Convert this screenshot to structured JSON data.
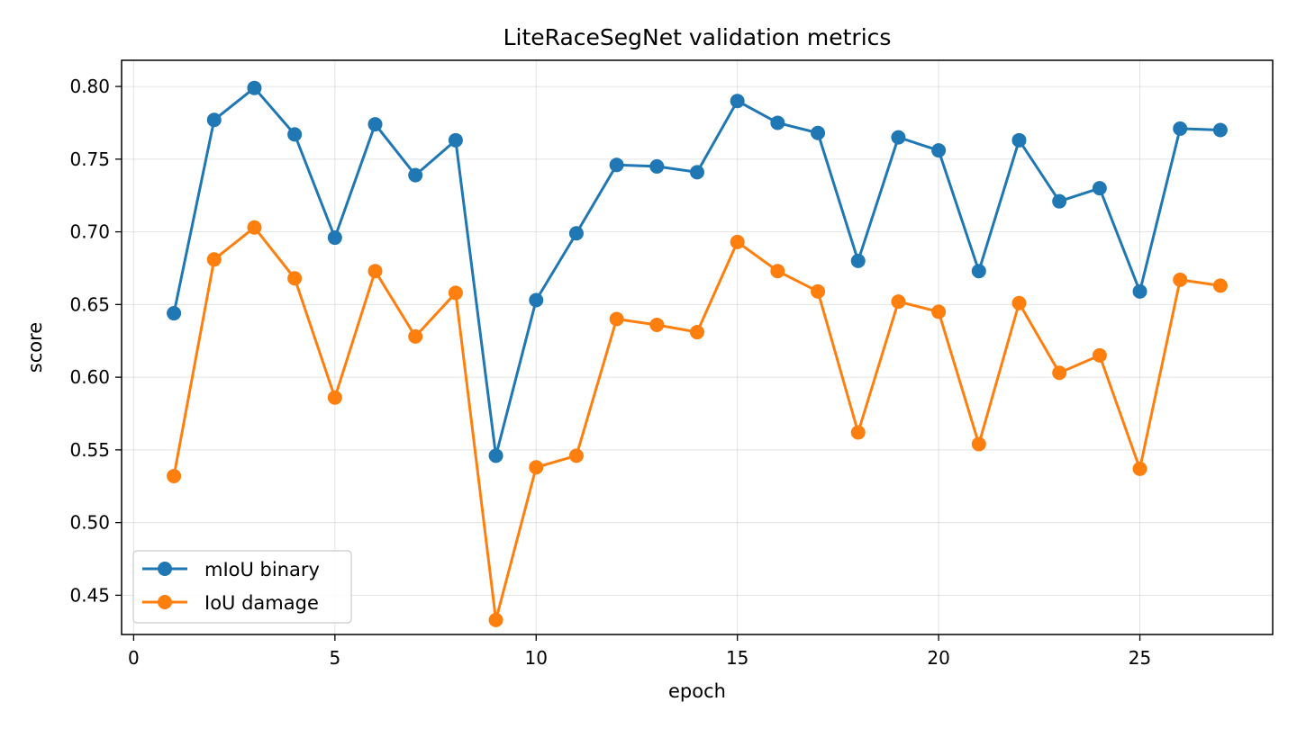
{
  "chart_data": {
    "type": "line",
    "title": "LiteRaceSegNet validation metrics",
    "xlabel": "epoch",
    "ylabel": "score",
    "xlim": [
      -0.3,
      28.3
    ],
    "ylim": [
      0.423,
      0.818
    ],
    "xticks": [
      0,
      5,
      10,
      15,
      20,
      25
    ],
    "yticks": [
      0.45,
      0.5,
      0.55,
      0.6,
      0.65,
      0.7,
      0.75,
      0.8
    ],
    "ytick_labels": [
      "0.45",
      "0.50",
      "0.55",
      "0.60",
      "0.65",
      "0.70",
      "0.75",
      "0.80"
    ],
    "grid": true,
    "legend_position": "lower-left",
    "x": [
      1,
      2,
      3,
      4,
      5,
      6,
      7,
      8,
      9,
      10,
      11,
      12,
      13,
      14,
      15,
      16,
      17,
      18,
      19,
      20,
      21,
      22,
      23,
      24,
      25,
      26,
      27
    ],
    "series": [
      {
        "name": "mIoU binary",
        "color": "#1f77b4",
        "values": [
          0.644,
          0.777,
          0.799,
          0.767,
          0.696,
          0.774,
          0.739,
          0.763,
          0.546,
          0.653,
          0.699,
          0.746,
          0.745,
          0.741,
          0.79,
          0.775,
          0.768,
          0.68,
          0.765,
          0.756,
          0.673,
          0.763,
          0.721,
          0.73,
          0.659,
          0.771,
          0.77
        ]
      },
      {
        "name": "IoU damage",
        "color": "#ff7f0e",
        "values": [
          0.532,
          0.681,
          0.703,
          0.668,
          0.586,
          0.673,
          0.628,
          0.658,
          0.433,
          0.538,
          0.546,
          0.64,
          0.636,
          0.631,
          0.693,
          0.673,
          0.659,
          0.562,
          0.652,
          0.645,
          0.554,
          0.651,
          0.603,
          0.615,
          0.537,
          0.667,
          0.663
        ]
      }
    ]
  }
}
